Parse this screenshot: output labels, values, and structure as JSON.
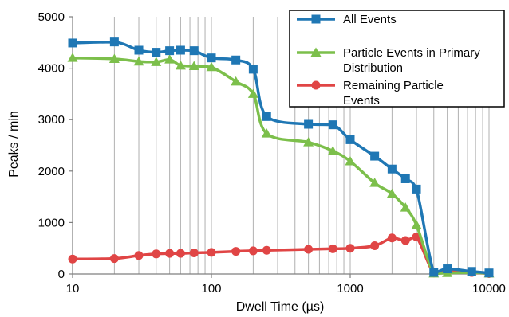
{
  "chart_data": {
    "type": "line",
    "x_scale": "log",
    "xlim": [
      10,
      10000
    ],
    "ylim": [
      0,
      5000
    ],
    "xlabel": "Dwell Time (µs)",
    "ylabel": "Peaks / min",
    "x_ticks": [
      "10",
      "100",
      "1000",
      "10000"
    ],
    "y_ticks": [
      "0",
      "1000",
      "2000",
      "3000",
      "4000",
      "5000"
    ],
    "grid": "vertical log minor and major",
    "legend_position": "top-right",
    "series": [
      {
        "name": "All Events",
        "color": "#1f77b4",
        "marker": "square",
        "x": [
          10,
          20,
          30,
          40,
          50,
          60,
          75,
          100,
          150,
          200,
          250,
          500,
          750,
          1000,
          1500,
          2000,
          2500,
          3000,
          4000,
          5000,
          7500,
          10000
        ],
        "values": [
          4490,
          4510,
          4350,
          4310,
          4340,
          4350,
          4340,
          4200,
          4160,
          3980,
          3060,
          2910,
          2900,
          2610,
          2290,
          2040,
          1850,
          1650,
          30,
          100,
          50,
          20
        ]
      },
      {
        "name": "Particle Events in Primary Distribution",
        "color": "#7cbf4b",
        "marker": "triangle",
        "x": [
          10,
          20,
          30,
          40,
          50,
          60,
          75,
          100,
          150,
          200,
          250,
          500,
          750,
          1000,
          1500,
          2000,
          2500,
          3000,
          4000,
          5000,
          7500,
          10000
        ],
        "values": [
          4200,
          4180,
          4130,
          4120,
          4170,
          4050,
          4040,
          4020,
          3740,
          3500,
          2730,
          2560,
          2390,
          2190,
          1770,
          1560,
          1290,
          950,
          10,
          20,
          30,
          10
        ]
      },
      {
        "name": "Remaining Particle Events",
        "color": "#e04545",
        "marker": "circle",
        "x": [
          10,
          20,
          30,
          40,
          50,
          60,
          75,
          100,
          150,
          200,
          250,
          500,
          750,
          1000,
          1500,
          2000,
          2500,
          3000,
          4000,
          5000,
          7500,
          10000
        ],
        "values": [
          290,
          300,
          360,
          390,
          400,
          400,
          410,
          420,
          440,
          450,
          460,
          480,
          490,
          500,
          550,
          700,
          650,
          720,
          20,
          80,
          30,
          10
        ]
      }
    ]
  },
  "legend": {
    "entries": [
      [
        "All Events"
      ],
      [
        "Particle Events in Primary",
        "Distribution"
      ],
      [
        "Remaining Particle",
        "Events"
      ]
    ]
  }
}
